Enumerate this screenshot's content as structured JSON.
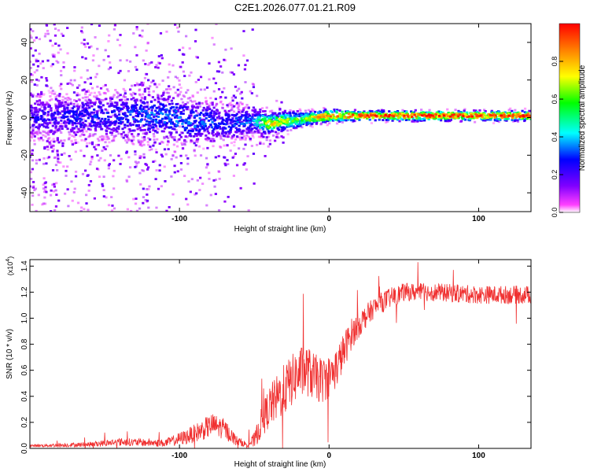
{
  "page_title": "C2E1.2026.077.01.21.R09",
  "chart_data": [
    {
      "type": "heatmap",
      "title": "C2E1.2026.077.01.21.R09",
      "xlabel": "Height of straight line (km)",
      "ylabel": "Frequency (Hz)",
      "xlim": [
        -200,
        135
      ],
      "ylim": [
        -50,
        50
      ],
      "x_ticks": [
        -100,
        0,
        100
      ],
      "x_tick_labels": [
        "-100",
        "0",
        "100"
      ],
      "y_ticks": [
        -40,
        -20,
        0,
        20,
        40
      ],
      "y_tick_labels": [
        "-40",
        "-20",
        "0",
        "20",
        "40"
      ],
      "colorbar": {
        "label": "Normalized spectral amplitude",
        "range": [
          0,
          1
        ],
        "ticks": [
          0,
          0.2,
          0.4,
          0.6,
          0.8
        ],
        "tick_labels": [
          "0.0",
          "0.2",
          "0.4",
          "0.6",
          "0.8"
        ],
        "colors": [
          "#ffffff",
          "#ff00ff",
          "#8000ff",
          "#0000ff",
          "#00ffff",
          "#00ff00",
          "#ffff00",
          "#ff8000",
          "#ff0000"
        ]
      },
      "ridge": {
        "x": [
          -200,
          -150,
          -110,
          -90,
          -70,
          -50,
          -40,
          -30,
          -20,
          -10,
          0,
          20,
          60,
          100,
          135
        ],
        "center_hz": [
          0,
          1,
          1,
          -2,
          -3,
          -2,
          -3,
          -2,
          -1,
          0,
          1,
          1,
          1,
          1,
          1
        ],
        "spread_hz": [
          6,
          7,
          8,
          7,
          6,
          4,
          3,
          3,
          2.5,
          2,
          2,
          1.5,
          1.5,
          1.5,
          1.5
        ],
        "amplitude": [
          0.25,
          0.3,
          0.35,
          0.35,
          0.3,
          0.35,
          0.8,
          0.7,
          0.6,
          0.75,
          0.9,
          0.95,
          0.95,
          0.95,
          0.95
        ]
      }
    },
    {
      "type": "line",
      "xlabel": "Height of straight line (km)",
      "ylabel": "SNR (10 * v/v)",
      "y_multiplier_label": "(x10",
      "y_multiplier_exp": "4",
      "y_multiplier_close": ")",
      "xlim": [
        -200,
        135
      ],
      "ylim": [
        0,
        1.45
      ],
      "x_ticks": [
        -100,
        0,
        100
      ],
      "x_tick_labels": [
        "-100",
        "0",
        "100"
      ],
      "y_ticks": [
        0,
        0.2,
        0.4,
        0.6,
        0.8,
        1.0,
        1.2,
        1.4
      ],
      "y_tick_labels": [
        "0.0",
        "0.2",
        "0.4",
        "0.6",
        "0.8",
        "1.0",
        "1.2",
        "1.4"
      ],
      "series": [
        {
          "name": "SNR",
          "color": "#f03030",
          "envelope_x": [
            -200,
            -160,
            -140,
            -110,
            -95,
            -85,
            -78,
            -70,
            -62,
            -55,
            -50,
            -45,
            -40,
            -35,
            -30,
            -25,
            -20,
            -15,
            -10,
            -5,
            0,
            5,
            10,
            15,
            20,
            25,
            30,
            35,
            40,
            50,
            70,
            100,
            135
          ],
          "envelope_y": [
            0.02,
            0.03,
            0.05,
            0.04,
            0.09,
            0.14,
            0.18,
            0.15,
            0.06,
            0.03,
            0.06,
            0.2,
            0.32,
            0.38,
            0.45,
            0.52,
            0.58,
            0.6,
            0.55,
            0.52,
            0.55,
            0.62,
            0.75,
            0.88,
            0.95,
            1.02,
            1.08,
            1.12,
            1.15,
            1.2,
            1.2,
            1.18,
            1.18
          ],
          "noise_y": [
            0.01,
            0.02,
            0.03,
            0.03,
            0.06,
            0.08,
            0.09,
            0.08,
            0.04,
            0.02,
            0.06,
            0.12,
            0.16,
            0.18,
            0.2,
            0.2,
            0.2,
            0.2,
            0.18,
            0.18,
            0.16,
            0.16,
            0.14,
            0.12,
            0.1,
            0.09,
            0.08,
            0.08,
            0.08,
            0.07,
            0.07,
            0.07,
            0.07
          ]
        }
      ]
    }
  ]
}
